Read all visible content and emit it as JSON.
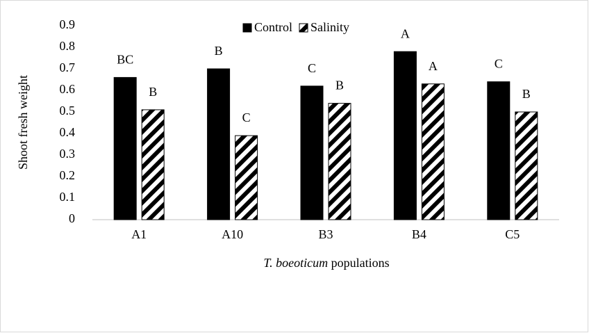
{
  "chart_data": {
    "type": "bar",
    "ylabel": "Shoot fresh weight",
    "xlabel_parts": [
      "T. boeoticum",
      "populations"
    ],
    "categories": [
      "A1",
      "A10",
      "B3",
      "B4",
      "C5"
    ],
    "series": [
      {
        "name": "Control",
        "color": "#000000",
        "fill": "solid",
        "values": [
          0.66,
          0.7,
          0.62,
          0.78,
          0.64
        ],
        "annotations": [
          "BC",
          "B",
          "C",
          "A",
          "C"
        ]
      },
      {
        "name": "Salinity",
        "color": "#000000",
        "fill": "hatch",
        "values": [
          0.51,
          0.39,
          0.54,
          0.63,
          0.5
        ],
        "annotations": [
          "B",
          "C",
          "B",
          "A",
          "B"
        ]
      }
    ],
    "ylim": [
      0,
      0.9
    ],
    "yticks": [
      0,
      0.1,
      0.2,
      0.3,
      0.4,
      0.5,
      0.6,
      0.7,
      0.8,
      0.9
    ],
    "grid": false,
    "legend": "top"
  }
}
